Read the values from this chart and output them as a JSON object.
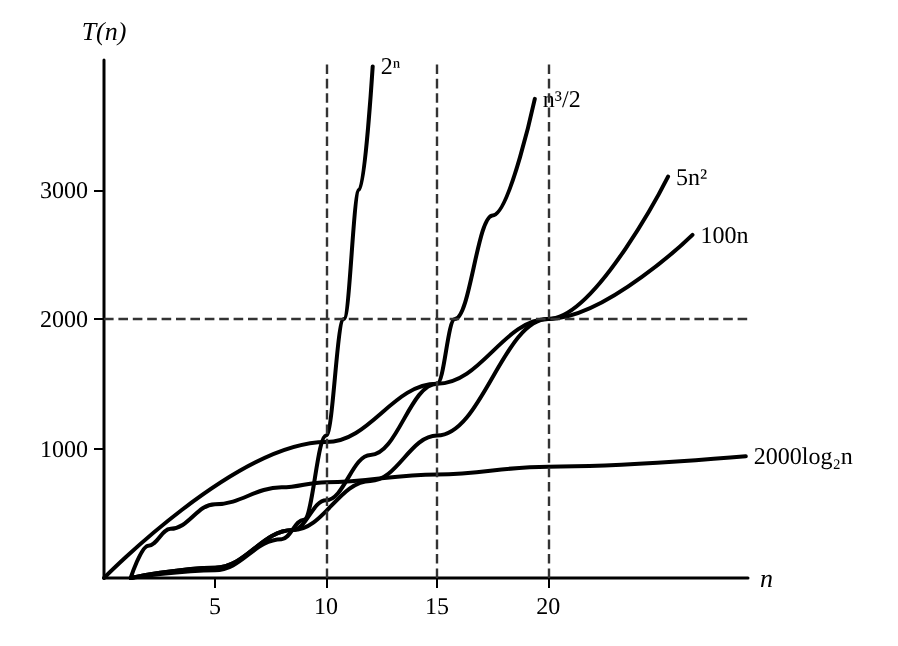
{
  "chart_data": {
    "type": "line",
    "xlabel": "n",
    "ylabel": "T(n)",
    "xlim": [
      0,
      29
    ],
    "xticks": [
      5,
      10,
      15,
      20
    ],
    "ylim": [
      0,
      4000
    ],
    "yticks": [
      1000,
      2000,
      3000
    ],
    "grid": false,
    "legend": false,
    "marker": "none",
    "line_style": "solid",
    "series": [
      {
        "name": "2ⁿ",
        "color": "#000000",
        "x": [
          1.2,
          5,
          8,
          9,
          10,
          10.8,
          11.5,
          12.1
        ],
        "values": [
          0,
          60,
          300,
          450,
          1100,
          2000,
          3000,
          3950
        ]
      },
      {
        "name": "n³/2",
        "color": "#000000",
        "x": [
          1.2,
          5,
          8.5,
          10,
          12,
          15,
          15.8,
          17.5,
          19.4
        ],
        "values": [
          0,
          80,
          370,
          600,
          950,
          1500,
          2000,
          2800,
          3700
        ]
      },
      {
        "name": "5n²",
        "color": "#000000",
        "x": [
          1.2,
          5,
          8.5,
          12,
          15,
          20,
          25.4
        ],
        "values": [
          0,
          80,
          370,
          750,
          1100,
          2000,
          3100
        ]
      },
      {
        "name": "100n",
        "color": "#000000",
        "x": [
          0,
          10,
          15,
          20,
          26.5
        ],
        "values": [
          0,
          1050,
          1500,
          2000,
          2650
        ]
      },
      {
        "name": "2000log₂n",
        "color": "#000000",
        "x": [
          1.2,
          2,
          3,
          5,
          8,
          10,
          15,
          20,
          28.9
        ],
        "values": [
          0,
          250,
          380,
          570,
          700,
          740,
          800,
          860,
          940
        ]
      }
    ],
    "ref_lines": [
      {
        "axis": "x",
        "value": 10,
        "color": "#333333",
        "line_style": "dashed"
      },
      {
        "axis": "x",
        "value": 15,
        "color": "#333333",
        "line_style": "dashed"
      },
      {
        "axis": "x",
        "value": 20,
        "color": "#333333",
        "line_style": "dashed"
      },
      {
        "axis": "y",
        "value": 2000,
        "color": "#333333",
        "line_style": "dashed"
      }
    ]
  }
}
